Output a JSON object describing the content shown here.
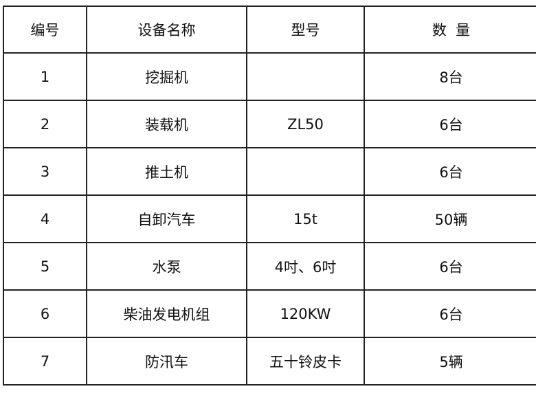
{
  "table": {
    "headers": [
      "编号",
      "设备名称",
      "型号",
      "数  量"
    ],
    "rows": [
      [
        "1",
        "挖掘机",
        "",
        "8台"
      ],
      [
        "2",
        "装载机",
        "ZL50",
        "6台"
      ],
      [
        "3",
        "推土机",
        "",
        "6台"
      ],
      [
        "4",
        "自卸汽车",
        "15t",
        "50辆"
      ],
      [
        "5",
        "水泵",
        "4吋、6吋",
        "6台"
      ],
      [
        "6",
        "柴油发电机组",
        "120KW",
        "6台"
      ],
      [
        "7",
        "防汛车",
        "五十铃皮卡",
        "5辆"
      ]
    ]
  }
}
